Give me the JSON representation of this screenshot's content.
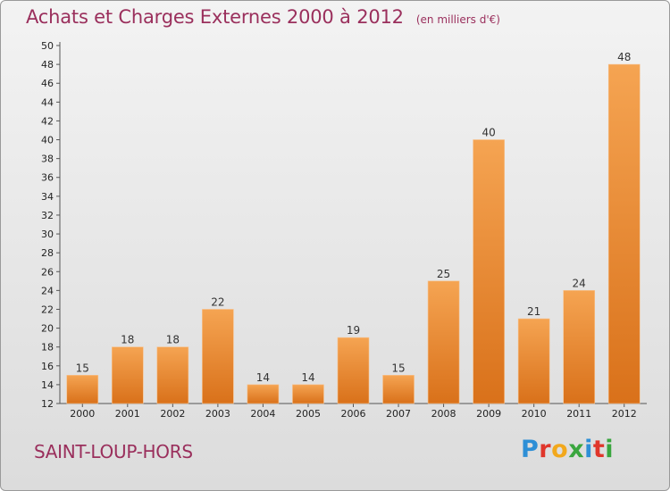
{
  "header": {
    "title": "Achats et Charges Externes 2000 à 2012",
    "subtitle": "(en milliers d'€)"
  },
  "footer": {
    "commune": "SAINT-LOUP-HORS",
    "logo_letters": [
      "P",
      "r",
      "o",
      "x",
      "i",
      "t",
      "i"
    ],
    "logo_colors": [
      "#2e8fd6",
      "#e0362b",
      "#f2a81c",
      "#3aa63f",
      "#2e8fd6",
      "#e0362b",
      "#3aa63f"
    ]
  },
  "chart_data": {
    "type": "bar",
    "title": "Achats et Charges Externes 2000 à 2012",
    "subtitle": "(en milliers d'€)",
    "xlabel": "",
    "ylabel": "",
    "categories": [
      "2000",
      "2001",
      "2002",
      "2003",
      "2004",
      "2005",
      "2006",
      "2007",
      "2008",
      "2009",
      "2010",
      "2011",
      "2012"
    ],
    "values": [
      15,
      18,
      18,
      22,
      14,
      14,
      19,
      15,
      25,
      40,
      21,
      24,
      48
    ],
    "ylim": [
      12,
      50
    ],
    "ytick_step": 2,
    "grid": false,
    "legend": "none",
    "bar_color_top": "#f5a452",
    "bar_color_bottom": "#d9711a"
  }
}
